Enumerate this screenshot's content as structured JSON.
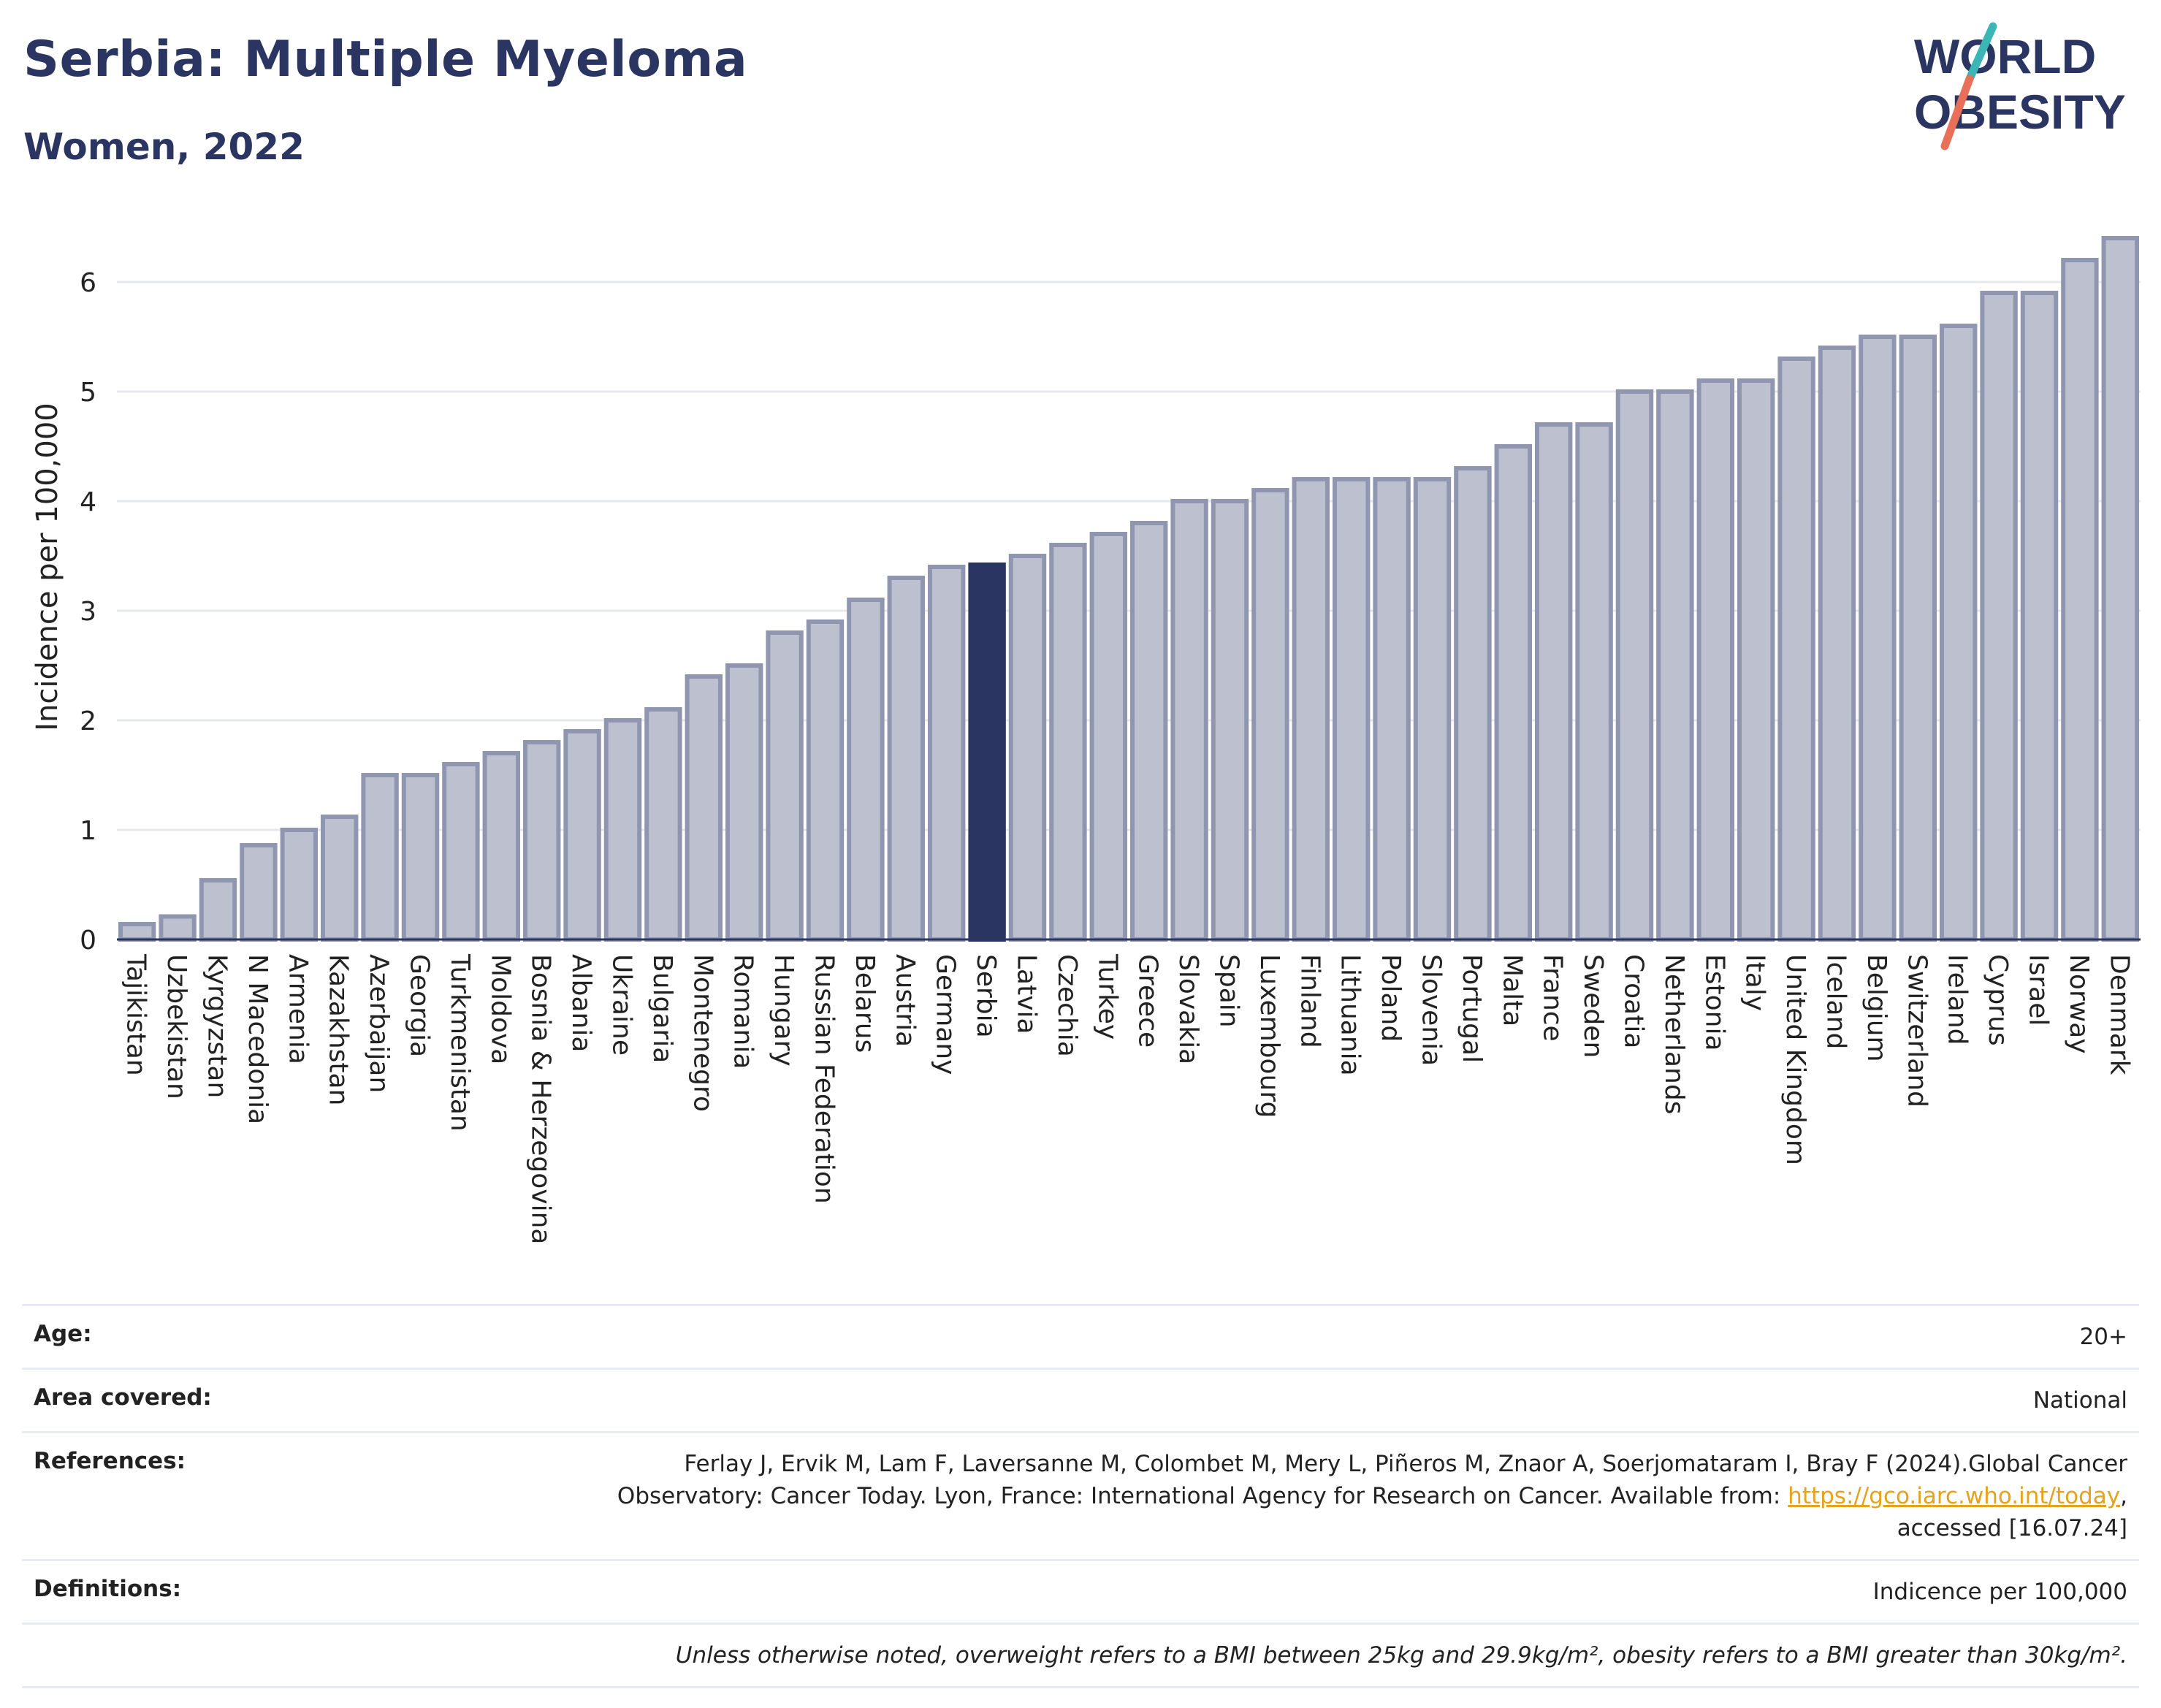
{
  "header": {
    "title": "Serbia: Multiple Myeloma",
    "subtitle": "Women, 2022",
    "logo_line1": "WORLD",
    "logo_line2": "OBESITY"
  },
  "colors": {
    "bar_fill": "#bcc0cf",
    "bar_stroke": "#9196b0",
    "highlight": "#2b3562",
    "grid": "#e6e8ee",
    "logo_slash_teal": "#3bb5b5",
    "logo_slash_red": "#e8705a"
  },
  "chart_data": {
    "type": "bar",
    "ylabel": "Incidence per 100,000",
    "ylim": [
      0,
      6.5
    ],
    "yticks": [
      "0",
      "1",
      "2",
      "3",
      "4",
      "5",
      "6"
    ],
    "grid": true,
    "highlight": "Serbia",
    "categories": [
      "Tajikistan",
      "Uzbekistan",
      "Kyrgyzstan",
      "N Macedonia",
      "Armenia",
      "Kazakhstan",
      "Azerbaijan",
      "Georgia",
      "Turkmenistan",
      "Moldova",
      "Bosnia & Herzegovina",
      "Albania",
      "Ukraine",
      "Bulgaria",
      "Montenegro",
      "Romania",
      "Hungary",
      "Russian Federation",
      "Belarus",
      "Austria",
      "Germany",
      "Serbia",
      "Latvia",
      "Czechia",
      "Turkey",
      "Greece",
      "Slovakia",
      "Spain",
      "Luxembourg",
      "Finland",
      "Lithuania",
      "Poland",
      "Slovenia",
      "Portugal",
      "Malta",
      "France",
      "Sweden",
      "Croatia",
      "Netherlands",
      "Estonia",
      "Italy",
      "United Kingdom",
      "Iceland",
      "Belgium",
      "Switzerland",
      "Ireland",
      "Cyprus",
      "Israel",
      "Norway",
      "Denmark"
    ],
    "values": [
      0.14,
      0.21,
      0.54,
      0.86,
      1.0,
      1.12,
      1.5,
      1.5,
      1.6,
      1.7,
      1.8,
      1.9,
      2.0,
      2.1,
      2.4,
      2.5,
      2.8,
      2.9,
      3.1,
      3.3,
      3.4,
      3.42,
      3.5,
      3.6,
      3.7,
      3.8,
      4.0,
      4.0,
      4.1,
      4.2,
      4.2,
      4.2,
      4.2,
      4.3,
      4.5,
      4.7,
      4.7,
      5.0,
      5.0,
      5.1,
      5.1,
      5.3,
      5.4,
      5.5,
      5.5,
      5.6,
      5.9,
      5.9,
      6.2,
      6.4
    ]
  },
  "meta": {
    "age_label": "Age:",
    "age_value": "20+",
    "area_label": "Area covered:",
    "area_value": "National",
    "references_label": "References:",
    "references_line1": "Ferlay J, Ervik M, Lam F, Laversanne M, Colombet M, Mery L, Piñeros M, Znaor A, Soerjomataram I, Bray F (2024).Global Cancer",
    "references_line2": "Observatory: Cancer Today. Lyon, France: International Agency for Research on Cancer. Available from:",
    "references_link": "https://gco.iarc.who.int/today",
    "references_line3": "accessed [16.07.24]",
    "definitions_label": "Definitions:",
    "definitions_value": "Indicence per 100,000",
    "note": "Unless otherwise noted, overweight refers to a BMI between 25kg and 29.9kg/m², obesity refers to a BMI greater than 30kg/m²."
  }
}
